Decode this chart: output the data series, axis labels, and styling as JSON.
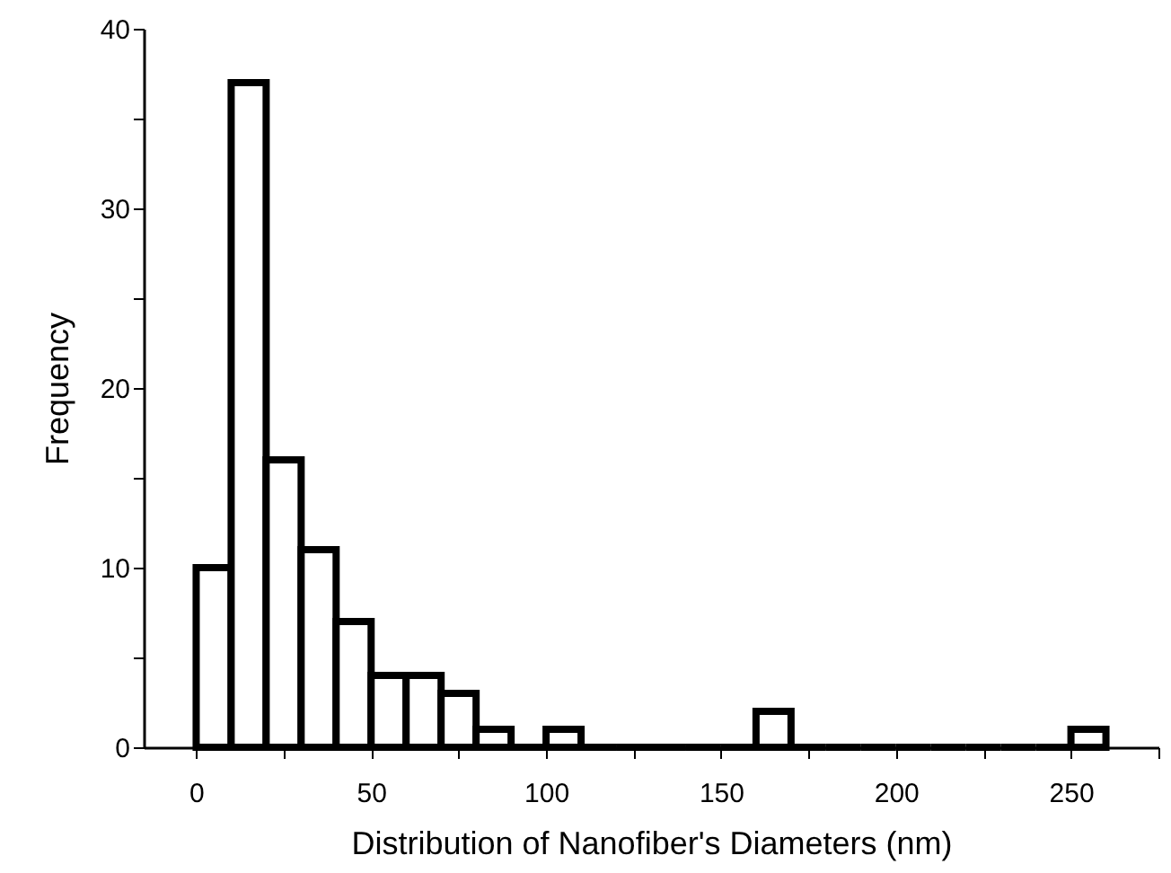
{
  "chart_data": {
    "type": "histogram",
    "xlabel": "Distribution of Nanofiber's Diameters (nm)",
    "ylabel": "Frequency",
    "bins": [
      0,
      10,
      20,
      30,
      40,
      50,
      60,
      70,
      80,
      90,
      100,
      110,
      120,
      130,
      140,
      150,
      160,
      170,
      180,
      190,
      200,
      210,
      220,
      230,
      240,
      250,
      260
    ],
    "values": [
      10,
      37,
      16,
      11,
      7,
      4,
      4,
      3,
      1,
      0,
      1,
      0,
      0,
      0,
      0,
      0,
      2,
      0,
      0,
      0,
      0,
      0,
      0,
      0,
      0,
      1
    ],
    "color": "#000000",
    "xlim": [
      -15,
      275
    ],
    "xticks": [
      0,
      {
        "value": 25,
        "label": null
      },
      50,
      {
        "value": 75,
        "label": null
      },
      100,
      {
        "value": 125,
        "label": null
      },
      150,
      {
        "value": 175,
        "label": null
      },
      200,
      {
        "value": 225,
        "label": null
      },
      250,
      {
        "value": 275,
        "label": null
      }
    ],
    "ylim": [
      0,
      40
    ],
    "yticks": [
      0,
      {
        "value": 5,
        "label": null
      },
      10,
      {
        "value": 15,
        "label": null
      },
      20,
      {
        "value": 25,
        "label": null
      },
      30,
      {
        "value": 35,
        "label": null
      },
      40
    ],
    "grid": false
  }
}
